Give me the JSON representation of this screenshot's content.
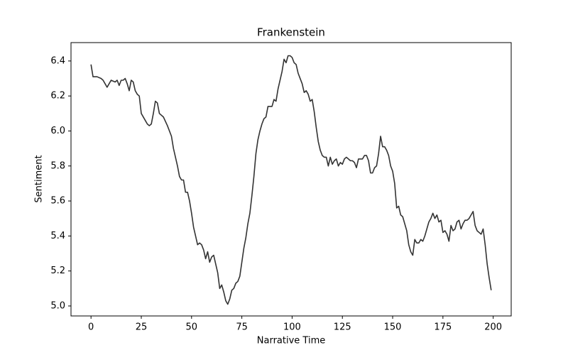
{
  "chart_data": {
    "type": "line",
    "title": "Frankenstein",
    "xlabel": "Narrative Time",
    "ylabel": "Sentiment",
    "x": [
      0,
      1,
      3,
      5,
      6,
      7,
      8,
      9,
      10,
      12,
      13,
      14,
      15,
      16,
      17,
      18,
      19,
      20,
      21,
      22,
      23,
      24,
      25,
      27,
      28,
      29,
      30,
      31,
      32,
      33,
      34,
      36,
      38,
      40,
      41,
      42,
      43,
      44,
      45,
      46,
      47,
      48,
      49,
      50,
      51,
      52,
      53,
      54,
      55,
      56,
      57,
      58,
      59,
      60,
      61,
      62,
      63,
      64,
      65,
      66,
      67,
      68,
      69,
      70,
      71,
      72,
      73,
      74,
      75,
      76,
      77,
      78,
      79,
      80,
      81,
      82,
      83,
      84,
      85,
      86,
      87,
      88,
      90,
      91,
      92,
      93,
      95,
      96,
      97,
      98,
      99,
      100,
      101,
      102,
      103,
      104,
      105,
      106,
      107,
      108,
      109,
      110,
      111,
      112,
      113,
      114,
      115,
      116,
      117,
      118,
      119,
      120,
      121,
      122,
      123,
      124,
      125,
      126,
      127,
      128,
      129,
      130,
      131,
      132,
      133,
      134,
      135,
      136,
      137,
      138,
      139,
      140,
      141,
      142,
      143,
      144,
      145,
      146,
      147,
      148,
      149,
      150,
      151,
      152,
      153,
      154,
      155,
      156,
      157,
      158,
      159,
      160,
      161,
      162,
      163,
      164,
      165,
      166,
      167,
      168,
      169,
      170,
      171,
      172,
      173,
      174,
      175,
      176,
      177,
      178,
      179,
      180,
      181,
      182,
      183,
      184,
      185,
      186,
      187,
      188,
      189,
      190,
      191,
      192,
      193,
      194,
      195,
      196,
      197,
      198,
      199
    ],
    "series": [
      {
        "name": "Frankenstein",
        "color": "#333333",
        "values": [
          6.38,
          6.31,
          6.31,
          6.3,
          6.29,
          6.27,
          6.25,
          6.27,
          6.29,
          6.28,
          6.29,
          6.26,
          6.29,
          6.29,
          6.3,
          6.27,
          6.23,
          6.29,
          6.28,
          6.23,
          6.21,
          6.2,
          6.1,
          6.06,
          6.04,
          6.03,
          6.04,
          6.1,
          6.17,
          6.16,
          6.1,
          6.08,
          6.03,
          5.97,
          5.9,
          5.85,
          5.8,
          5.74,
          5.72,
          5.72,
          5.65,
          5.65,
          5.6,
          5.53,
          5.45,
          5.4,
          5.35,
          5.36,
          5.35,
          5.32,
          5.27,
          5.31,
          5.25,
          5.28,
          5.29,
          5.24,
          5.19,
          5.1,
          5.12,
          5.08,
          5.03,
          5.01,
          5.04,
          5.09,
          5.1,
          5.13,
          5.14,
          5.17,
          5.25,
          5.33,
          5.39,
          5.47,
          5.53,
          5.63,
          5.74,
          5.87,
          5.95,
          6.0,
          6.04,
          6.07,
          6.08,
          6.14,
          6.14,
          6.18,
          6.17,
          6.24,
          6.34,
          6.41,
          6.39,
          6.43,
          6.43,
          6.42,
          6.39,
          6.38,
          6.33,
          6.3,
          6.27,
          6.22,
          6.23,
          6.21,
          6.17,
          6.18,
          6.11,
          6.02,
          5.94,
          5.89,
          5.86,
          5.85,
          5.85,
          5.8,
          5.85,
          5.81,
          5.83,
          5.84,
          5.8,
          5.82,
          5.81,
          5.84,
          5.85,
          5.84,
          5.83,
          5.83,
          5.82,
          5.79,
          5.84,
          5.84,
          5.84,
          5.86,
          5.86,
          5.83,
          5.76,
          5.76,
          5.79,
          5.8,
          5.87,
          5.97,
          5.91,
          5.91,
          5.89,
          5.86,
          5.8,
          5.77,
          5.7,
          5.56,
          5.57,
          5.52,
          5.51,
          5.47,
          5.43,
          5.35,
          5.31,
          5.29,
          5.38,
          5.36,
          5.36,
          5.38,
          5.37,
          5.4,
          5.44,
          5.48,
          5.5,
          5.53,
          5.5,
          5.52,
          5.48,
          5.49,
          5.42,
          5.43,
          5.41,
          5.37,
          5.46,
          5.43,
          5.44,
          5.48,
          5.49,
          5.44,
          5.47,
          5.49,
          5.49,
          5.5,
          5.52,
          5.54,
          5.46,
          5.43,
          5.42,
          5.41,
          5.44,
          5.35,
          5.24,
          5.16,
          5.09
        ]
      }
    ],
    "xlim": [
      -9.95,
      208.95
    ],
    "xticks": [
      0,
      25,
      50,
      75,
      100,
      125,
      150,
      175,
      200
    ],
    "ylim": [
      4.943,
      6.505
    ],
    "yticks": [
      {
        "value": 5,
        "label": "5.0"
      },
      5.2,
      5.4,
      5.6,
      5.8,
      {
        "value": 6,
        "label": "6.0"
      },
      6.2,
      6.4
    ],
    "grid": false
  }
}
